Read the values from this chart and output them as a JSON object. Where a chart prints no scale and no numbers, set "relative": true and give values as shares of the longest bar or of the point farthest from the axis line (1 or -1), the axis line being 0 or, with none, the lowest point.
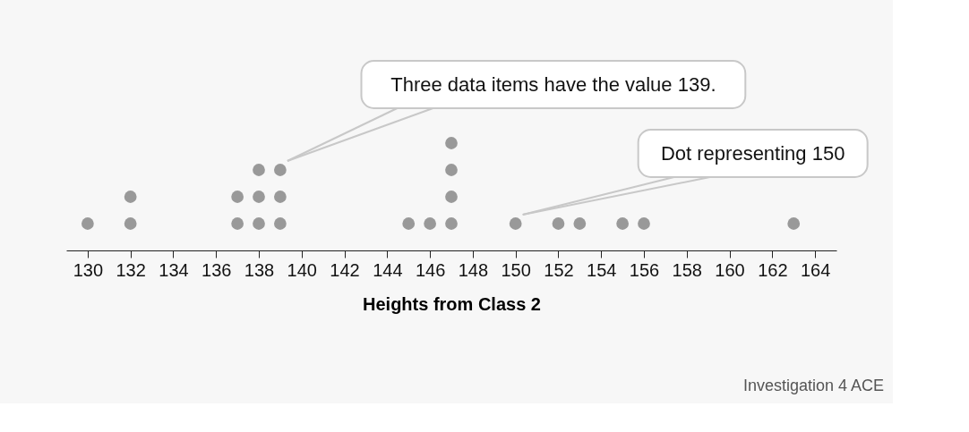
{
  "chart_data": {
    "type": "scatter",
    "xlabel": "Heights from Class 2",
    "relative": true,
    "x": [
      130,
      132,
      132,
      137,
      137,
      138,
      138,
      138,
      139,
      139,
      139,
      145,
      146,
      147,
      147,
      147,
      147,
      150,
      152,
      153,
      155,
      156,
      163
    ],
    "series": [
      {
        "color": "#999999",
        "values": [
          0.25,
          0.25,
          0.5,
          0.25,
          0.5,
          0.25,
          0.5,
          0.75,
          0.25,
          0.5,
          0.75,
          0.25,
          0.25,
          0.25,
          0.5,
          0.75,
          1,
          0.25,
          0.25,
          0.25,
          0.25,
          0.25,
          0.25
        ]
      }
    ],
    "xlim": [
      129,
      165
    ],
    "xticks": [
      130,
      132,
      134,
      136,
      138,
      140,
      142,
      144,
      146,
      148,
      150,
      152,
      154,
      156,
      158,
      160,
      162,
      164
    ],
    "tick_labels": "x",
    "grid": false,
    "marker": "circle",
    "annotations": [
      "Three data items have the value 139.",
      "Dot representing 150",
      "Investigation 4 ACE"
    ]
  }
}
